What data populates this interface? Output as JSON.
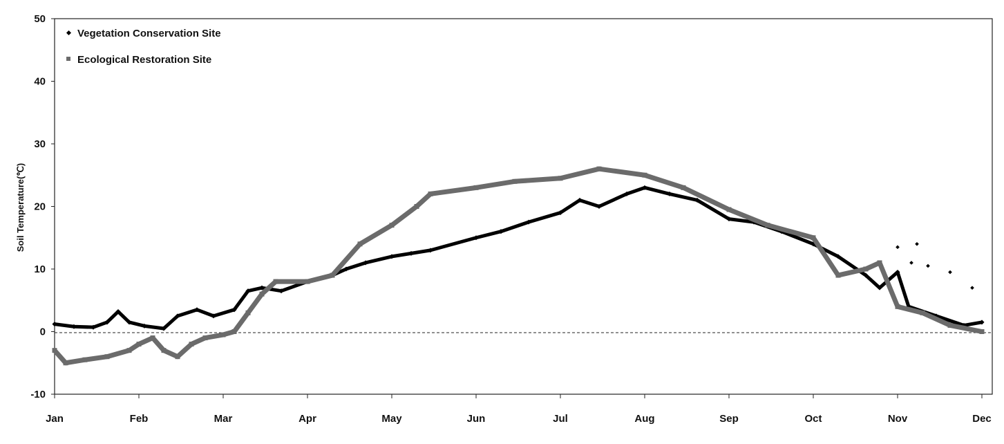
{
  "chart_data": {
    "type": "line",
    "title": "",
    "xlabel": "",
    "ylabel": "Soil Temperature(℃)",
    "ylim": [
      -10,
      50
    ],
    "yticks": [
      -10,
      0,
      10,
      20,
      30,
      40,
      50
    ],
    "xticks": [
      "Jan",
      "Feb",
      "Mar",
      "Apr",
      "May",
      "Jun",
      "Jul",
      "Aug",
      "Sep",
      "Oct",
      "Nov",
      "Dec"
    ],
    "grid": false,
    "reference_line": {
      "y": 0,
      "style": "dashed"
    },
    "legend": "top-left",
    "series": [
      {
        "name": "Vegetation Conservation Site",
        "color": "#000000",
        "marker": "diamond",
        "points": [
          [
            "01-01",
            1.2
          ],
          [
            "01-08",
            0.8
          ],
          [
            "01-15",
            0.7
          ],
          [
            "01-20",
            1.5
          ],
          [
            "01-24",
            3.2
          ],
          [
            "01-28",
            1.5
          ],
          [
            "02-03",
            0.9
          ],
          [
            "02-10",
            0.5
          ],
          [
            "02-15",
            2.5
          ],
          [
            "02-22",
            3.5
          ],
          [
            "02-28",
            2.5
          ],
          [
            "03-05",
            3.5
          ],
          [
            "03-10",
            6.5
          ],
          [
            "03-15",
            7
          ],
          [
            "03-22",
            6.5
          ],
          [
            "04-01",
            8
          ],
          [
            "04-10",
            9
          ],
          [
            "04-15",
            10
          ],
          [
            "04-22",
            11
          ],
          [
            "05-01",
            12
          ],
          [
            "05-08",
            12.5
          ],
          [
            "05-15",
            13
          ],
          [
            "06-01",
            15
          ],
          [
            "06-10",
            16
          ],
          [
            "06-20",
            17.5
          ],
          [
            "07-01",
            19
          ],
          [
            "07-08",
            21
          ],
          [
            "07-15",
            20
          ],
          [
            "07-25",
            22
          ],
          [
            "08-01",
            23
          ],
          [
            "08-10",
            22
          ],
          [
            "08-20",
            21
          ],
          [
            "09-01",
            18
          ],
          [
            "09-10",
            17.5
          ],
          [
            "09-20",
            16
          ],
          [
            "10-01",
            14
          ],
          [
            "10-10",
            12
          ],
          [
            "10-20",
            9
          ],
          [
            "10-25",
            7
          ],
          [
            "11-01",
            9.5
          ],
          [
            "11-05",
            4
          ],
          [
            "11-15",
            2.5
          ],
          [
            "11-25",
            1
          ],
          [
            "12-01",
            1.5
          ]
        ],
        "outliers": [
          [
            "11-01",
            13.5
          ],
          [
            "11-06",
            11
          ],
          [
            "11-08",
            14
          ],
          [
            "11-12",
            10.5
          ],
          [
            "11-20",
            9.5
          ],
          [
            "11-28",
            7
          ]
        ]
      },
      {
        "name": "Ecological Restoration Site",
        "color": "#6b6b6b",
        "marker": "square",
        "points": [
          [
            "01-01",
            -3
          ],
          [
            "01-05",
            -5
          ],
          [
            "01-12",
            -4.5
          ],
          [
            "01-20",
            -4
          ],
          [
            "01-28",
            -3
          ],
          [
            "02-01",
            -2
          ],
          [
            "02-06",
            -1
          ],
          [
            "02-10",
            -3
          ],
          [
            "02-15",
            -4
          ],
          [
            "02-20",
            -2
          ],
          [
            "02-25",
            -1
          ],
          [
            "03-01",
            -0.5
          ],
          [
            "03-05",
            0
          ],
          [
            "03-10",
            3
          ],
          [
            "03-15",
            6
          ],
          [
            "03-20",
            8
          ],
          [
            "04-01",
            8
          ],
          [
            "04-10",
            9
          ],
          [
            "04-20",
            14
          ],
          [
            "05-01",
            17
          ],
          [
            "05-10",
            20
          ],
          [
            "05-15",
            22
          ],
          [
            "06-01",
            23
          ],
          [
            "06-15",
            24
          ],
          [
            "07-01",
            24.5
          ],
          [
            "07-15",
            26
          ],
          [
            "08-01",
            25
          ],
          [
            "08-15",
            23
          ],
          [
            "09-01",
            19.5
          ],
          [
            "09-15",
            17
          ],
          [
            "10-01",
            15
          ],
          [
            "10-10",
            9
          ],
          [
            "10-20",
            10
          ],
          [
            "10-25",
            11
          ],
          [
            "11-01",
            4
          ],
          [
            "11-10",
            3
          ],
          [
            "11-20",
            1
          ],
          [
            "12-01",
            0
          ]
        ]
      }
    ]
  }
}
